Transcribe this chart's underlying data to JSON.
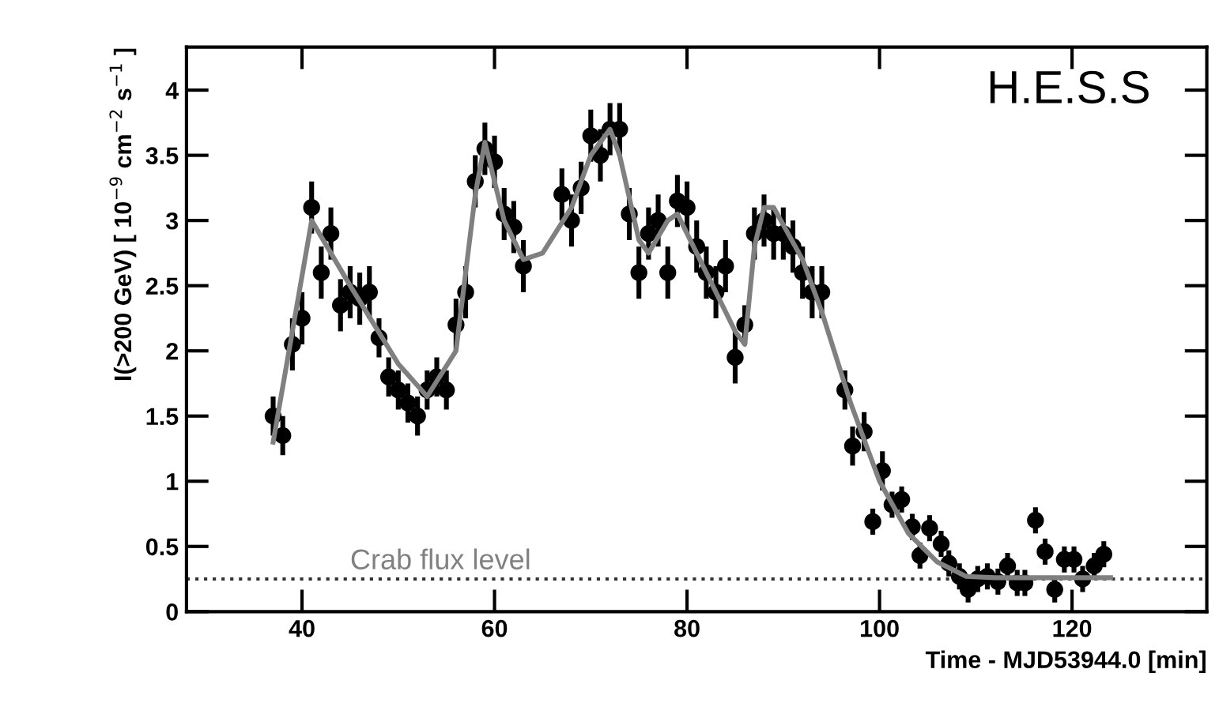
{
  "chart_data": {
    "type": "scatter",
    "xlabel": "Time - MJD53944.0 [min]",
    "ylabel": "I(>200 GeV) [ 10$^{−9}$ cm$^{−2}$ s$^{−1}$ ]",
    "annotations": [
      "H.E.S.S"
    ],
    "xlim": [
      28,
      134
    ],
    "xticks": [
      40,
      60,
      80,
      100,
      120
    ],
    "ylim": [
      0,
      4.33
    ],
    "yticks": [
      0,
      0.5,
      1,
      1.5,
      2,
      2.5,
      3,
      3.5,
      4
    ],
    "grid": false,
    "legend": false,
    "ref_lines": [
      {
        "axis": "y",
        "value": 0.25,
        "label": "Crab flux level",
        "color": "#333333",
        "line_style": "dotted"
      }
    ],
    "series": [
      {
        "marker": "circle",
        "color": "#000000",
        "x": [
          37,
          38,
          39,
          40,
          41,
          42,
          43,
          44,
          45,
          46,
          47,
          48,
          49,
          50,
          51,
          52,
          53,
          54,
          55,
          56,
          57,
          58,
          59,
          60,
          61,
          62,
          63,
          67,
          68,
          69,
          70,
          71,
          72,
          73,
          74,
          75,
          76,
          77,
          78,
          79,
          80,
          81,
          82,
          83,
          84,
          85,
          86,
          87,
          88,
          89,
          90,
          91,
          92,
          93,
          94,
          96.4,
          97.2,
          98.4,
          99.3,
          100.3,
          101.3,
          102.3,
          103.4,
          104.2,
          105.2,
          106.4,
          107.2,
          108.3,
          109.2,
          110.2,
          111.2,
          112.3,
          113.3,
          114.3,
          115.1,
          116.2,
          117.2,
          118.2,
          119.2,
          120.2,
          121.1,
          122.3,
          123.3
        ],
        "values": [
          1.5,
          1.35,
          2.05,
          2.25,
          3.1,
          2.6,
          2.9,
          2.35,
          2.45,
          2.4,
          2.45,
          2.1,
          1.8,
          1.7,
          1.6,
          1.5,
          1.7,
          1.8,
          1.7,
          2.2,
          2.45,
          3.3,
          3.55,
          3.45,
          3.05,
          2.95,
          2.65,
          3.2,
          3.0,
          3.25,
          3.65,
          3.5,
          3.7,
          3.7,
          3.05,
          2.6,
          2.9,
          3.0,
          2.6,
          3.15,
          3.1,
          2.8,
          2.6,
          2.45,
          2.65,
          1.95,
          2.2,
          2.9,
          3.0,
          2.9,
          2.9,
          2.8,
          2.6,
          2.45,
          2.45,
          1.7,
          1.27,
          1.38,
          0.69,
          1.08,
          0.82,
          0.86,
          0.65,
          0.43,
          0.64,
          0.52,
          0.37,
          0.27,
          0.17,
          0.25,
          0.27,
          0.23,
          0.35,
          0.22,
          0.22,
          0.7,
          0.46,
          0.17,
          0.4,
          0.4,
          0.25,
          0.35,
          0.44
        ],
        "errors": [
          0.15,
          0.15,
          0.2,
          0.2,
          0.2,
          0.2,
          0.2,
          0.2,
          0.2,
          0.2,
          0.2,
          0.15,
          0.15,
          0.15,
          0.15,
          0.15,
          0.15,
          0.15,
          0.15,
          0.2,
          0.2,
          0.2,
          0.2,
          0.2,
          0.2,
          0.2,
          0.2,
          0.2,
          0.2,
          0.2,
          0.2,
          0.2,
          0.2,
          0.2,
          0.2,
          0.2,
          0.2,
          0.2,
          0.2,
          0.2,
          0.2,
          0.2,
          0.2,
          0.2,
          0.2,
          0.2,
          0.15,
          0.2,
          0.2,
          0.2,
          0.2,
          0.2,
          0.2,
          0.2,
          0.2,
          0.15,
          0.15,
          0.15,
          0.1,
          0.15,
          0.1,
          0.1,
          0.1,
          0.1,
          0.1,
          0.1,
          0.1,
          0.1,
          0.1,
          0.1,
          0.1,
          0.1,
          0.1,
          0.1,
          0.1,
          0.1,
          0.1,
          0.1,
          0.1,
          0.1,
          0.1,
          0.1,
          0.1
        ]
      },
      {
        "type": "line",
        "marker": "none",
        "color": "#808080",
        "x": [
          37,
          41,
          45,
          50,
          53,
          56,
          58,
          59,
          61,
          63,
          65,
          68,
          70,
          72,
          73,
          75,
          76,
          78,
          79,
          82,
          85,
          86,
          87,
          88,
          89,
          92,
          94,
          97,
          100,
          103,
          106,
          109,
          112,
          124
        ],
        "values": [
          1.3,
          3.0,
          2.5,
          1.9,
          1.65,
          2.0,
          3.2,
          3.6,
          3.0,
          2.7,
          2.75,
          3.1,
          3.5,
          3.7,
          3.5,
          2.85,
          2.75,
          3.0,
          3.05,
          2.6,
          2.15,
          2.05,
          2.8,
          3.1,
          3.1,
          2.7,
          2.3,
          1.6,
          1.0,
          0.6,
          0.38,
          0.27,
          0.26,
          0.26
        ]
      }
    ]
  }
}
